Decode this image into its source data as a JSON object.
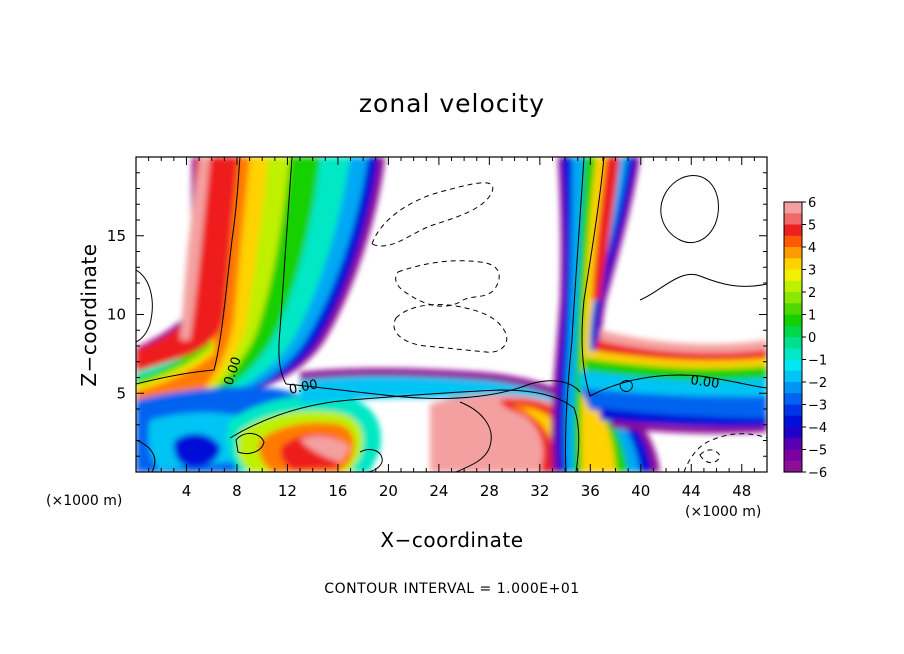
{
  "chart_data": {
    "type": "heatmap",
    "title": "zonal velocity",
    "xlabel": "X−coordinate",
    "ylabel": "Z−coordinate",
    "x_scale_note": "(×1000 m)",
    "z_scale_note": "(×1000 m)",
    "xlim": [
      0,
      50
    ],
    "ylim": [
      0,
      20
    ],
    "x_ticks": [
      "4",
      "8",
      "12",
      "16",
      "20",
      "24",
      "28",
      "32",
      "36",
      "40",
      "44",
      "48"
    ],
    "y_ticks": [
      "5",
      "10",
      "15"
    ],
    "colorbar": {
      "min": -6,
      "max": 6,
      "ticks": [
        "6",
        "5",
        "4",
        "3",
        "2",
        "1",
        "0",
        "−1",
        "−2",
        "−3",
        "−4",
        "−5",
        "−6"
      ],
      "colors": [
        "#f4a0a0",
        "#ef6a6a",
        "#ee1f1f",
        "#ff5a00",
        "#ff9a00",
        "#ffd200",
        "#f2f000",
        "#bff000",
        "#8ce800",
        "#4ed800",
        "#14d000",
        "#00d84a",
        "#00e08a",
        "#00e8c4",
        "#00e8f0",
        "#00c4f4",
        "#0094f4",
        "#0064f0",
        "#0034e8",
        "#0010d8",
        "#2000c8",
        "#5a00b4",
        "#7a00a0",
        "#8c1096"
      ]
    },
    "contour_labels": [
      "0.00",
      "0.00",
      "0.00"
    ],
    "contour_interval": "CONTOUR INTERVAL = 1.000E+01"
  }
}
